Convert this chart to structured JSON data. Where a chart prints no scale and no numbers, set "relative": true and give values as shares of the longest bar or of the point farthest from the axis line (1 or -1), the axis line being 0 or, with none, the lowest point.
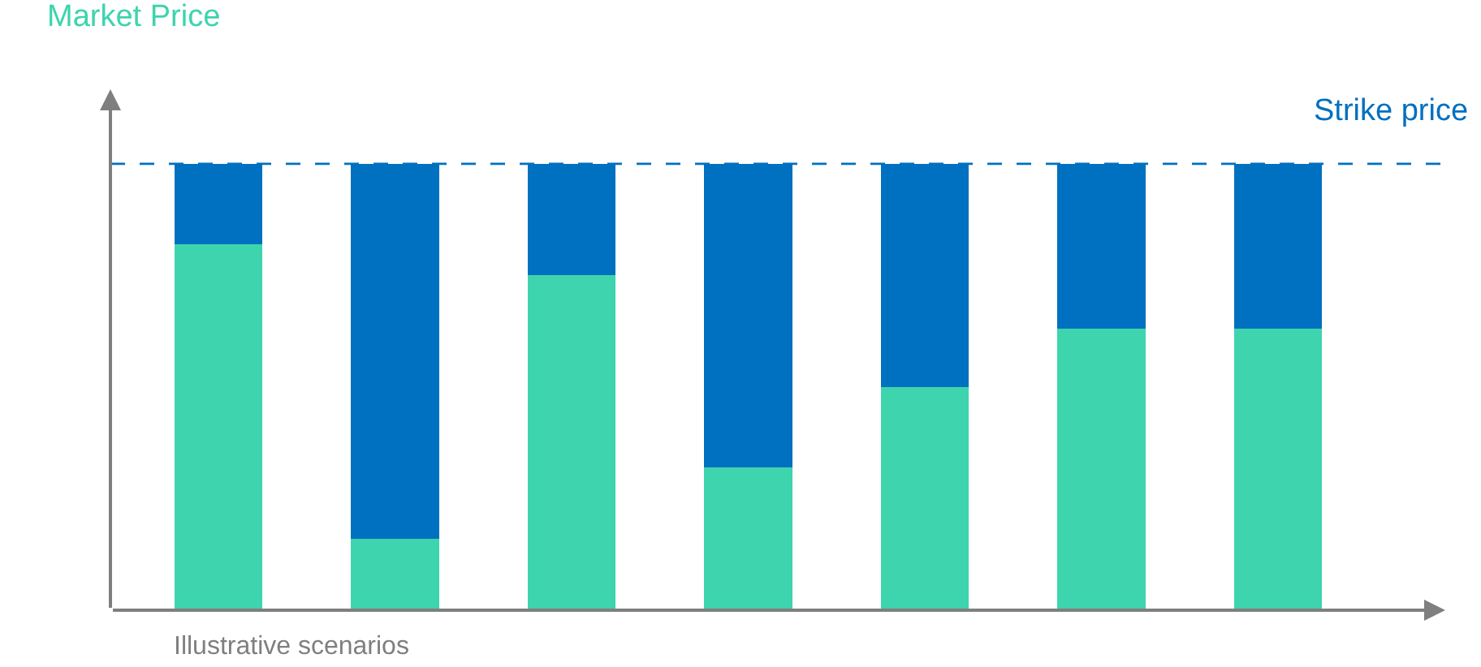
{
  "chart_data": {
    "type": "bar",
    "stacked": true,
    "relative": true,
    "ylabel": "Market Price",
    "xlabel": "Illustrative scenarios",
    "categories": [
      null,
      null,
      null,
      null,
      null,
      null,
      null
    ],
    "series": [
      {
        "color": "#3dd4ae",
        "values": [
          0.82,
          0.16,
          0.75,
          0.32,
          0.5,
          0.63,
          0.63
        ]
      },
      {
        "color": "#0070c0",
        "values": [
          0.18,
          0.84,
          0.25,
          0.68,
          0.5,
          0.37,
          0.37
        ]
      }
    ],
    "ref_lines": [
      {
        "axis": "y",
        "value": 1,
        "label": "Strike price",
        "color": "#0070c0",
        "line_style": "dashed"
      }
    ]
  }
}
